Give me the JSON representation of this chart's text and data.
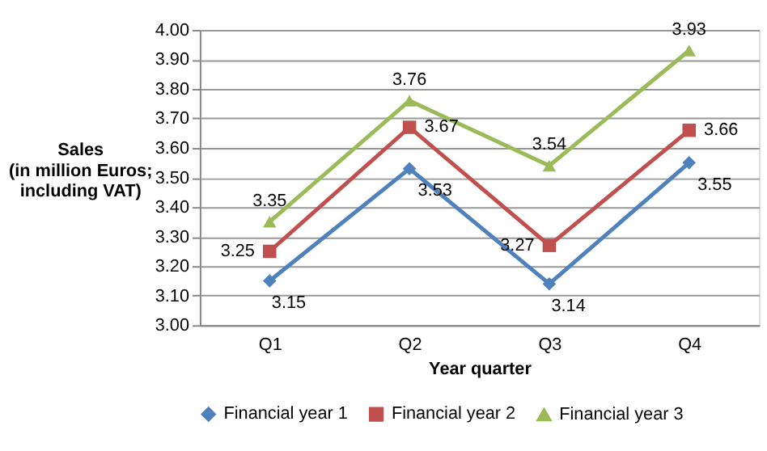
{
  "chart_data": {
    "type": "line",
    "xlabel": "Year quarter",
    "ylabel": "Sales\n(in million Euros;\nincluding VAT)",
    "categories": [
      "Q1",
      "Q2",
      "Q3",
      "Q4"
    ],
    "series": [
      {
        "name": "Financial year 1",
        "color": "#4f81bd",
        "marker": "diamond",
        "values": [
          3.15,
          3.53,
          3.14,
          3.55
        ]
      },
      {
        "name": "Financial year 2",
        "color": "#c0504d",
        "marker": "square",
        "values": [
          3.25,
          3.67,
          3.27,
          3.66
        ]
      },
      {
        "name": "Financial year 3",
        "color": "#9bbb59",
        "marker": "triangle",
        "values": [
          3.35,
          3.76,
          3.54,
          3.93
        ]
      }
    ],
    "ylim": [
      3.0,
      4.0
    ],
    "yticks": [
      {
        "value": 3.0,
        "label": "3.00"
      },
      {
        "value": 3.1,
        "label": "3.10"
      },
      {
        "value": 3.2,
        "label": "3.20"
      },
      {
        "value": 3.3,
        "label": "3.30"
      },
      {
        "value": 3.4,
        "label": "3.40"
      },
      {
        "value": 3.5,
        "label": "3.50"
      },
      {
        "value": 3.6,
        "label": "3.60"
      },
      {
        "value": 3.7,
        "label": "3.70"
      },
      {
        "value": 3.8,
        "label": "3.80"
      },
      {
        "value": 3.9,
        "label": "3.90"
      },
      {
        "value": 4.0,
        "label": "4.00"
      }
    ],
    "grid": "y",
    "legend": "bottom",
    "line_style": "solid",
    "data_labels": true
  }
}
